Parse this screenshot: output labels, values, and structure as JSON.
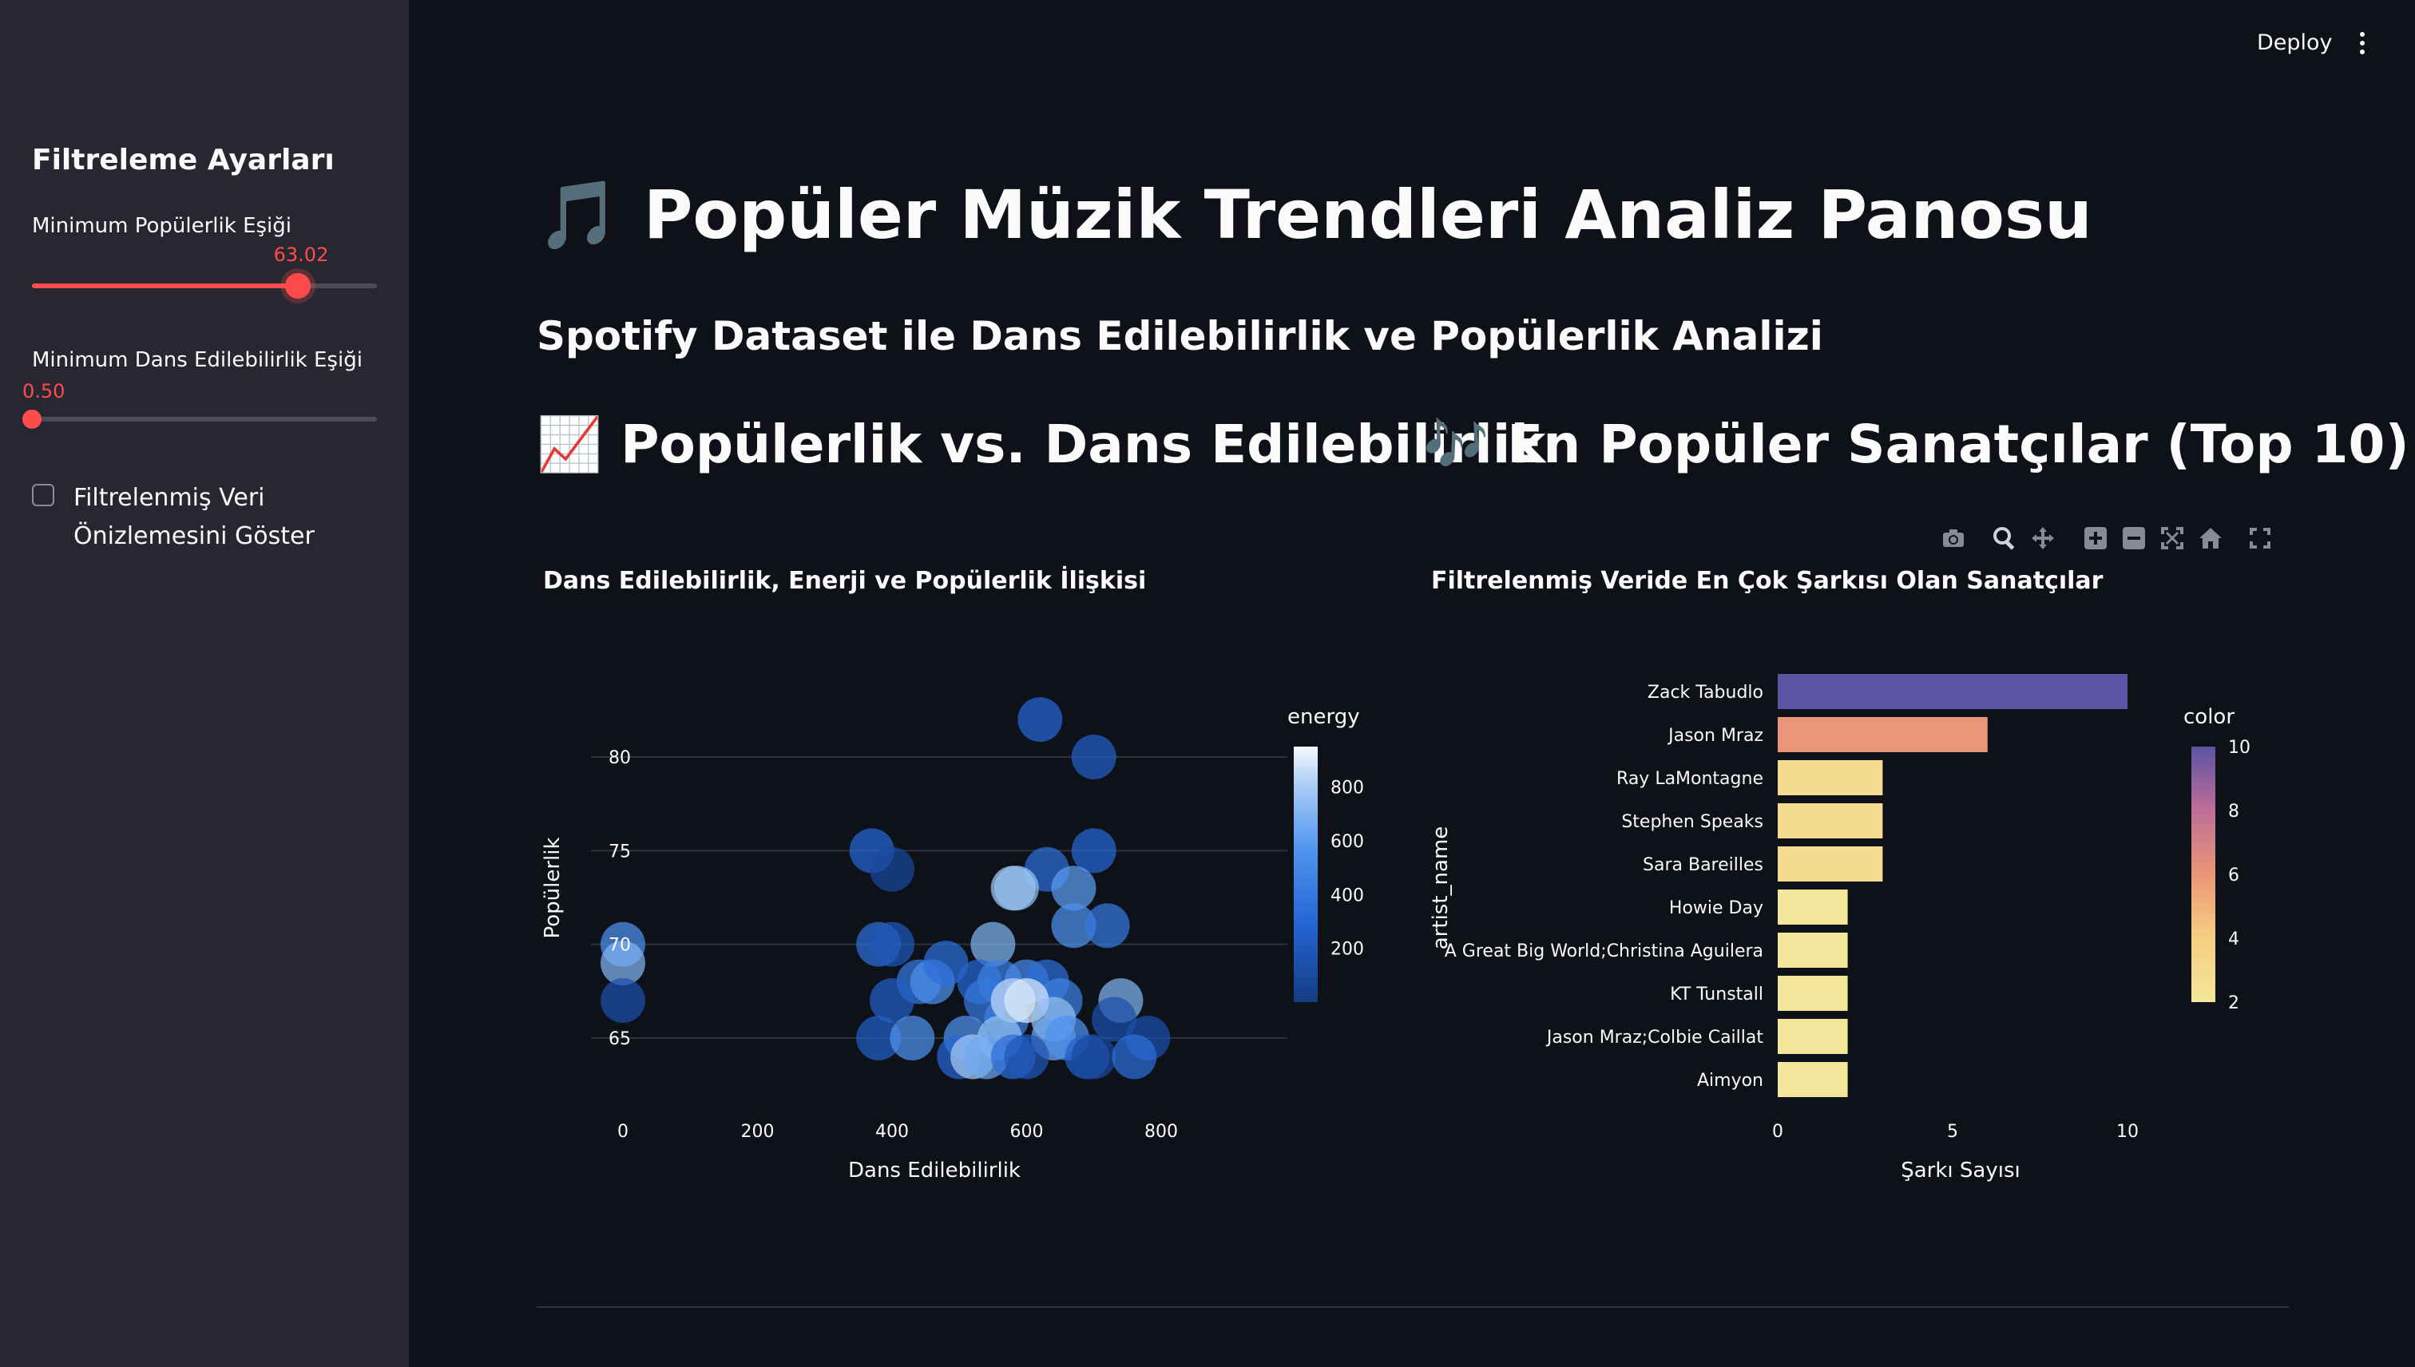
{
  "header": {
    "deploy_label": "Deploy",
    "menu_icon": "kebab-menu-icon"
  },
  "sidebar": {
    "title": "Filtreleme Ayarları",
    "popularity_slider": {
      "label": "Minimum Popülerlik Eşiği",
      "value_text": "63.02",
      "fraction": 0.77
    },
    "dance_slider": {
      "label": "Minimum Dans Edilebilirlik Eşiği",
      "value_text": "0.50",
      "fraction": 0.0
    },
    "preview_checkbox": {
      "label_line1": "Filtrelenmiş Veri",
      "label_line2": "Önizlemesini Göster",
      "checked": false
    }
  },
  "main": {
    "title": "🎵 Popüler Müzik Trendleri Analiz Panosu",
    "subtitle": "Spotify Dataset ile Dans Edilebilirlik ve Popülerlik Analizi",
    "section_scatter": "📈 Popülerlik vs. Dans Edilebilirlik",
    "section_bar": "🎶 En Popüler Sanatçılar (Top 10)",
    "modebar_icons": [
      "camera-icon",
      "zoom-icon",
      "pan-icon",
      "zoom-in-icon",
      "zoom-out-icon",
      "autoscale-icon",
      "reset-axes-icon",
      "fullscreen-icon"
    ]
  },
  "colors": {
    "accent": "#ff4b4b",
    "background": "#0e1117",
    "sidebar": "#262730"
  },
  "chart_data": [
    {
      "type": "scatter",
      "title": "Dans Edilebilirlik, Enerji ve Popülerlik İlişkisi",
      "xlabel": "Dans Edilebilirlik",
      "ylabel": "Popülerlik",
      "xlim": [
        -80,
        870
      ],
      "ylim": [
        61.3,
        84.4
      ],
      "xticks": [
        0,
        200,
        400,
        600,
        800
      ],
      "yticks": [
        65,
        70,
        75,
        80
      ],
      "grid": true,
      "colorbar": {
        "title": "energy",
        "ticks": [
          200,
          400,
          600,
          800
        ],
        "range": [
          0,
          950
        ]
      },
      "points": [
        {
          "x": 0,
          "y": 70,
          "energy": 550
        },
        {
          "x": 0,
          "y": 69,
          "energy": 700
        },
        {
          "x": 0,
          "y": 67,
          "energy": 150
        },
        {
          "x": 620,
          "y": 82,
          "energy": 300
        },
        {
          "x": 700,
          "y": 80,
          "energy": 250
        },
        {
          "x": 370,
          "y": 75,
          "energy": 300
        },
        {
          "x": 400,
          "y": 74,
          "energy": 100
        },
        {
          "x": 630,
          "y": 74,
          "energy": 350
        },
        {
          "x": 700,
          "y": 75,
          "energy": 300
        },
        {
          "x": 580,
          "y": 73,
          "energy": 800
        },
        {
          "x": 585,
          "y": 73,
          "energy": 750
        },
        {
          "x": 670,
          "y": 73,
          "energy": 600
        },
        {
          "x": 670,
          "y": 71,
          "energy": 550
        },
        {
          "x": 720,
          "y": 71,
          "energy": 400
        },
        {
          "x": 380,
          "y": 70,
          "energy": 350
        },
        {
          "x": 400,
          "y": 70,
          "energy": 200
        },
        {
          "x": 550,
          "y": 70,
          "energy": 700
        },
        {
          "x": 440,
          "y": 68,
          "energy": 400
        },
        {
          "x": 460,
          "y": 68,
          "energy": 550
        },
        {
          "x": 480,
          "y": 69,
          "energy": 350
        },
        {
          "x": 530,
          "y": 68,
          "energy": 300
        },
        {
          "x": 560,
          "y": 68,
          "energy": 450
        },
        {
          "x": 600,
          "y": 68,
          "energy": 500
        },
        {
          "x": 630,
          "y": 68,
          "energy": 350
        },
        {
          "x": 650,
          "y": 67,
          "energy": 450
        },
        {
          "x": 740,
          "y": 67,
          "energy": 700
        },
        {
          "x": 400,
          "y": 67,
          "energy": 250
        },
        {
          "x": 540,
          "y": 67,
          "energy": 400
        },
        {
          "x": 570,
          "y": 66,
          "energy": 450
        },
        {
          "x": 580,
          "y": 67,
          "energy": 850
        },
        {
          "x": 600,
          "y": 67,
          "energy": 900
        },
        {
          "x": 640,
          "y": 66,
          "energy": 750
        },
        {
          "x": 640,
          "y": 65,
          "energy": 650
        },
        {
          "x": 660,
          "y": 65,
          "energy": 550
        },
        {
          "x": 730,
          "y": 66,
          "energy": 150
        },
        {
          "x": 380,
          "y": 65,
          "energy": 250
        },
        {
          "x": 430,
          "y": 65,
          "energy": 550
        },
        {
          "x": 510,
          "y": 65,
          "energy": 550
        },
        {
          "x": 560,
          "y": 65,
          "energy": 750
        },
        {
          "x": 780,
          "y": 65,
          "energy": 150
        },
        {
          "x": 500,
          "y": 64,
          "energy": 300
        },
        {
          "x": 520,
          "y": 64,
          "energy": 800
        },
        {
          "x": 540,
          "y": 64,
          "energy": 650
        },
        {
          "x": 580,
          "y": 64,
          "energy": 350
        },
        {
          "x": 600,
          "y": 64,
          "energy": 200
        },
        {
          "x": 690,
          "y": 64,
          "energy": 250
        },
        {
          "x": 700,
          "y": 64,
          "energy": 100
        },
        {
          "x": 760,
          "y": 64,
          "energy": 350
        }
      ]
    },
    {
      "type": "bar",
      "orientation": "horizontal",
      "title": "Filtrelenmiş Veride En Çok Şarkısı Olan Sanatçılar",
      "xlabel": "Şarkı Sayısı",
      "ylabel": "artist_name",
      "xlim": [
        0,
        10.4
      ],
      "xticks": [
        0,
        5,
        10
      ],
      "colorbar": {
        "title": "color",
        "ticks": [
          2,
          4,
          6,
          8,
          10
        ],
        "range": [
          2,
          10
        ]
      },
      "categories": [
        "Zack Tabudlo",
        "Jason Mraz",
        "Ray LaMontagne",
        "Stephen Speaks",
        "Sara Bareilles",
        "Howie Day",
        "A Great Big World;Christina Aguilera",
        "KT Tunstall",
        "Jason Mraz;Colbie Caillat",
        "Aimyon"
      ],
      "values": [
        10,
        6,
        3,
        3,
        3,
        2,
        2,
        2,
        2,
        2
      ]
    }
  ]
}
